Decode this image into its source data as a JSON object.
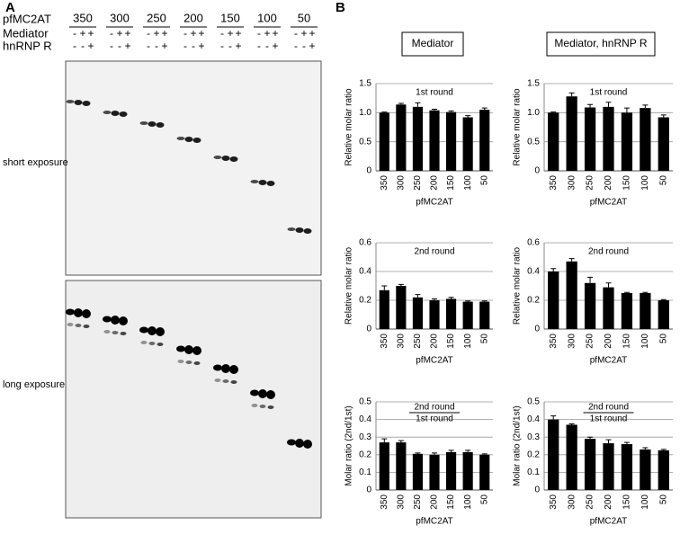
{
  "panel_a": {
    "label": "A",
    "row_labels": [
      "pfMC2AT",
      "Mediator",
      "hnRNP R"
    ],
    "sizes": [
      350,
      300,
      250,
      200,
      150,
      100,
      50
    ],
    "mediator_signs": [
      "-",
      "+",
      "+"
    ],
    "hnrnp_signs": [
      "-",
      "-",
      "+"
    ],
    "gel_labels": [
      "short exposure",
      "long exposure"
    ]
  },
  "panel_b": {
    "label": "B",
    "column_titles": [
      "Mediator",
      "Mediator, hnRNP R"
    ]
  },
  "chart_data": [
    {
      "type": "bar",
      "title": "1st round",
      "ylabel": "Relative molar ratio",
      "xlabel": "pfMC2AT",
      "color": "#000000",
      "categories": [
        "350",
        "300",
        "250",
        "200",
        "150",
        "100",
        "50"
      ],
      "values": [
        1.0,
        1.14,
        1.1,
        1.04,
        1.01,
        0.92,
        1.05
      ],
      "errors": [
        0.01,
        0.02,
        0.07,
        0.02,
        0.02,
        0.03,
        0.03
      ],
      "ylim": [
        0,
        1.5
      ],
      "yticks": [
        0,
        0.5,
        {
          "value": 1,
          "label": "1.0"
        },
        1.5
      ],
      "grid": true
    },
    {
      "type": "bar",
      "title": "1st round",
      "ylabel": "Relative molar ratio",
      "xlabel": "pfMC2AT",
      "color": "#000000",
      "categories": [
        "350",
        "300",
        "250",
        "200",
        "150",
        "100",
        "50"
      ],
      "values": [
        1.0,
        1.28,
        1.09,
        1.1,
        1.0,
        1.08,
        0.92
      ],
      "errors": [
        0.01,
        0.06,
        0.05,
        0.08,
        0.08,
        0.05,
        0.04
      ],
      "ylim": [
        0,
        1.5
      ],
      "yticks": [
        0,
        0.5,
        {
          "value": 1,
          "label": "1.0"
        },
        1.5
      ],
      "grid": true
    },
    {
      "type": "bar",
      "title": "2nd round",
      "ylabel": "Relative molar ratio",
      "xlabel": "pfMC2AT",
      "color": "#000000",
      "categories": [
        "350",
        "300",
        "250",
        "200",
        "150",
        "100",
        "50"
      ],
      "values": [
        0.27,
        0.3,
        0.22,
        0.2,
        0.21,
        0.19,
        0.19
      ],
      "errors": [
        0.03,
        0.01,
        0.02,
        0.01,
        0.01,
        0.005,
        0.005
      ],
      "ylim": [
        0,
        0.6
      ],
      "yticks": [
        0,
        0.2,
        0.4,
        0.6
      ],
      "grid": true
    },
    {
      "type": "bar",
      "title": "2nd round",
      "ylabel": "Relative molar ratio",
      "xlabel": "pfMC2AT",
      "color": "#000000",
      "categories": [
        "350",
        "300",
        "250",
        "200",
        "150",
        "100",
        "50"
      ],
      "values": [
        0.4,
        0.47,
        0.32,
        0.29,
        0.25,
        0.25,
        0.2
      ],
      "errors": [
        0.02,
        0.02,
        0.04,
        0.03,
        0.005,
        0.005,
        0.005
      ],
      "ylim": [
        0,
        0.6
      ],
      "yticks": [
        0,
        0.2,
        0.4,
        0.6
      ],
      "grid": true
    },
    {
      "type": "bar",
      "title": "2nd round",
      "subtitle": "1st round",
      "ylabel": "Molar ratio (2nd/1st)",
      "xlabel": "pfMC2AT",
      "color": "#000000",
      "categories": [
        "350",
        "300",
        "250",
        "200",
        "150",
        "100",
        "50"
      ],
      "values": [
        0.27,
        0.27,
        0.205,
        0.2,
        0.215,
        0.215,
        0.2
      ],
      "errors": [
        0.02,
        0.01,
        0.005,
        0.01,
        0.01,
        0.01,
        0.005
      ],
      "ylim": [
        0,
        0.5
      ],
      "yticks": [
        0,
        0.1,
        0.2,
        0.3,
        0.4,
        0.5
      ],
      "grid": true
    },
    {
      "type": "bar",
      "title": "2nd round",
      "subtitle": "1st round",
      "ylabel": "Molar ratio (2nd/1st)",
      "xlabel": "pfMC2AT",
      "color": "#000000",
      "categories": [
        "350",
        "300",
        "250",
        "200",
        "150",
        "100",
        "50"
      ],
      "values": [
        0.4,
        0.37,
        0.29,
        0.265,
        0.26,
        0.23,
        0.225
      ],
      "errors": [
        0.02,
        0.005,
        0.01,
        0.02,
        0.01,
        0.01,
        0.005
      ],
      "ylim": [
        0,
        0.5
      ],
      "yticks": [
        0,
        0.1,
        0.2,
        0.3,
        0.4,
        0.5
      ],
      "grid": true
    }
  ]
}
